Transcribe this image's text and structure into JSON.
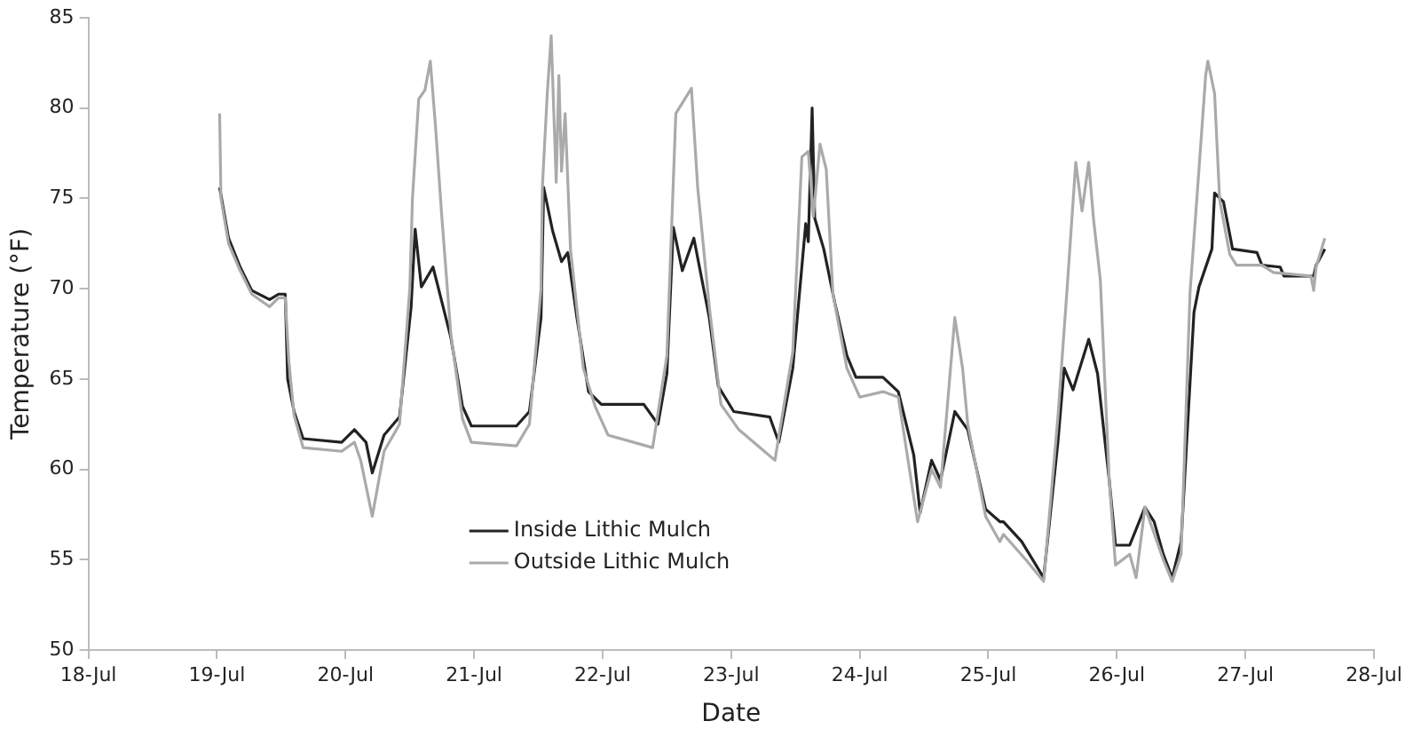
{
  "chart_data": {
    "type": "line",
    "xlabel": "Date",
    "ylabel": "Temperature (°F)",
    "xlim": [
      "--07-18",
      "--07-28"
    ],
    "ylim": [
      50,
      85
    ],
    "xticks": [
      {
        "value": "--07-18",
        "label": "18-Jul"
      },
      {
        "value": "--07-19",
        "label": "19-Jul"
      },
      {
        "value": "--07-20",
        "label": "20-Jul"
      },
      {
        "value": "--07-21",
        "label": "21-Jul"
      },
      {
        "value": "--07-22",
        "label": "22-Jul"
      },
      {
        "value": "--07-23",
        "label": "23-Jul"
      },
      {
        "value": "--07-24",
        "label": "24-Jul"
      },
      {
        "value": "--07-25",
        "label": "25-Jul"
      },
      {
        "value": "--07-26",
        "label": "26-Jul"
      },
      {
        "value": "--07-27",
        "label": "27-Jul"
      },
      {
        "value": "--07-28",
        "label": "28-Jul"
      }
    ],
    "yticks": [
      50,
      55,
      60,
      65,
      70,
      75,
      80,
      85
    ],
    "grid": false,
    "legend": "bottom",
    "marker": "none",
    "line_style": "solid",
    "series": [
      {
        "name": "Outside Lithic Mulch",
        "color": "#aaaaaa",
        "x": [
          "--07-19T00:30",
          "--07-19T00:45",
          "--07-19T02:10",
          "--07-19T04:20",
          "--07-19T06:30",
          "--07-19T09:50",
          "--07-19T11:30",
          "--07-19T12:45",
          "--07-19T13:25",
          "--07-19T14:24",
          "--07-19T16:05",
          "--07-19T23:17",
          "--07-20T01:40",
          "--07-20T02:50",
          "--07-20T05:00",
          "--07-20T07:12",
          "--07-20T10:05",
          "--07-20T12:00",
          "--07-20T12:30",
          "--07-20T13:40",
          "--07-20T14:50",
          "--07-20T15:50",
          "--07-20T16:48",
          "--07-20T18:00",
          "--07-20T19:40",
          "--07-20T21:50",
          "--07-20T23:30",
          "--07-21T07:55",
          "--07-21T10:20",
          "--07-21T12:30",
          "--07-21T12:45",
          "--07-21T13:40",
          "--07-21T14:24",
          "--07-21T15:20",
          "--07-21T15:50",
          "--07-21T16:20",
          "--07-21T17:00",
          "--07-21T18:00",
          "--07-21T20:24",
          "--07-21T22:35",
          "--07-22T01:00",
          "--07-22T09:20",
          "--07-22T12:00",
          "--07-22T13:40",
          "--07-22T15:20",
          "--07-22T16:35",
          "--07-22T17:45",
          "--07-22T19:55",
          "--07-22T22:05",
          "--07-23T01:25",
          "--07-23T08:10",
          "--07-23T11:30",
          "--07-23T13:12",
          "--07-23T14:24",
          "--07-23T15:20",
          "--07-23T16:35",
          "--07-23T17:45",
          "--07-23T19:00",
          "--07-23T21:36",
          "--07-24T00:00",
          "--07-24T04:20",
          "--07-24T07:12",
          "--07-24T10:48",
          "--07-24T13:25",
          "--07-24T15:05",
          "--07-24T17:45",
          "--07-24T19:12",
          "--07-24T20:10",
          "--07-24T23:30",
          "--07-25T02:10",
          "--07-25T02:50",
          "--07-25T07:00",
          "--07-25T10:20",
          "--07-25T13:00",
          "--07-25T14:40",
          "--07-25T16:20",
          "--07-25T17:30",
          "--07-25T18:45",
          "--07-25T19:40",
          "--07-25T20:55",
          "--07-25T22:35",
          "--07-25T23:45",
          "--07-26T02:24",
          "--07-26T03:36",
          "--07-26T05:15",
          "--07-26T08:40",
          "--07-26T10:20",
          "--07-26T12:00",
          "--07-26T13:40",
          "--07-26T15:20",
          "--07-26T16:35",
          "--07-26T17:00",
          "--07-26T18:15",
          "--07-26T19:12",
          "--07-26T21:05",
          "--07-26T22:20",
          "--07-27T03:05",
          "--07-27T05:15",
          "--07-27T12:15",
          "--07-27T12:45",
          "--07-27T13:12",
          "--07-27T14:50"
        ],
        "values": [
          79.7,
          75,
          72.5,
          71,
          69.7,
          69,
          69.5,
          69.5,
          66,
          63,
          61.2,
          61,
          61.5,
          60.5,
          57.4,
          61,
          62.5,
          70,
          75,
          80.5,
          81,
          82.6,
          79,
          73.9,
          67.5,
          62.8,
          61.5,
          61.3,
          62.5,
          70,
          75.6,
          80.8,
          84,
          75.9,
          81.8,
          76.5,
          79.7,
          72.2,
          65.6,
          63.5,
          61.9,
          61.2,
          66.3,
          79.7,
          80.5,
          81.1,
          75.6,
          69,
          63.6,
          62.2,
          60.5,
          66.5,
          77.3,
          77.6,
          74,
          78,
          76.6,
          69.7,
          65.6,
          64,
          64.3,
          64,
          57.1,
          60,
          59,
          68.4,
          65.6,
          62.5,
          57.4,
          56,
          56.4,
          55,
          53.8,
          62.9,
          69.8,
          77,
          74.3,
          77,
          73.8,
          70.5,
          59.4,
          54.7,
          55.3,
          54,
          57.9,
          55,
          53.8,
          55.3,
          69.8,
          76.6,
          81.8,
          82.6,
          80.8,
          74.9,
          71.9,
          71.3,
          71.3,
          70.9,
          70.7,
          69.9,
          71.2,
          72.8
        ]
      },
      {
        "name": "Inside Lithic Mulch",
        "color": "#222222",
        "x": [
          "--07-19T00:30",
          "--07-19T02:10",
          "--07-19T04:20",
          "--07-19T06:30",
          "--07-19T09:50",
          "--07-19T11:30",
          "--07-19T12:45",
          "--07-19T13:12",
          "--07-19T14:24",
          "--07-19T16:05",
          "--07-19T23:17",
          "--07-20T01:40",
          "--07-20T03:50",
          "--07-20T05:00",
          "--07-20T07:12",
          "--07-20T10:05",
          "--07-20T12:15",
          "--07-20T13:00",
          "--07-20T14:10",
          "--07-20T16:20",
          "--07-20T17:17",
          "--07-20T19:40",
          "--07-20T21:50",
          "--07-20T23:30",
          "--07-21T07:55",
          "--07-21T10:20",
          "--07-21T12:30",
          "--07-21T13:00",
          "--07-21T14:40",
          "--07-21T16:20",
          "--07-21T17:30",
          "--07-21T19:12",
          "--07-21T21:22",
          "--07-21T23:45",
          "--07-22T07:41",
          "--07-22T10:20",
          "--07-22T12:00",
          "--07-22T13:12",
          "--07-22T14:53",
          "--07-22T17:02",
          "--07-22T19:55",
          "--07-22T21:36",
          "--07-23T00:29",
          "--07-23T07:12",
          "--07-23T08:53",
          "--07-23T11:30",
          "--07-23T13:55",
          "--07-23T14:24",
          "--07-23T15:07",
          "--07-23T15:36",
          "--07-23T17:17",
          "--07-23T19:26",
          "--07-23T21:36",
          "--07-23T23:17",
          "--07-24T04:20",
          "--07-24T07:12",
          "--07-24T10:05",
          "--07-24T11:17",
          "--07-24T13:25",
          "--07-24T15:05",
          "--07-24T17:45",
          "--07-24T20:10",
          "--07-24T23:30",
          "--07-25T02:10",
          "--07-25T02:50",
          "--07-25T06:14",
          "--07-25T10:20",
          "--07-25T13:00",
          "--07-25T14:10",
          "--07-25T15:50",
          "--07-25T18:45",
          "--07-25T20:24",
          "--07-25T22:35",
          "--07-25T23:45",
          "--07-26T02:24",
          "--07-26T05:15",
          "--07-26T06:58",
          "--07-26T08:40",
          "--07-26T10:20",
          "--07-26T12:00",
          "--07-26T14:24",
          "--07-26T15:20",
          "--07-26T17:45",
          "--07-26T18:15",
          "--07-26T19:55",
          "--07-26T21:36",
          "--07-27T02:10",
          "--07-27T03:05",
          "--07-27T06:29",
          "--07-27T07:12",
          "--07-27T12:45",
          "--07-27T13:12",
          "--07-27T14:50"
        ],
        "values": [
          75.6,
          72.8,
          71.2,
          69.9,
          69.4,
          69.7,
          69.7,
          65,
          63.2,
          61.7,
          61.5,
          62.2,
          61.5,
          59.8,
          61.9,
          62.9,
          69,
          73.3,
          70.1,
          71.2,
          70.1,
          67.3,
          63.5,
          62.4,
          62.4,
          63.2,
          68.4,
          75.6,
          73.2,
          71.5,
          72,
          68.4,
          64.3,
          63.6,
          63.6,
          62.5,
          65.3,
          73.4,
          71,
          72.8,
          68.4,
          64.6,
          63.2,
          62.9,
          61.5,
          65.6,
          73.6,
          72.6,
          80,
          73.9,
          72.2,
          69.1,
          66.3,
          65.1,
          65.1,
          64.3,
          60.8,
          57.6,
          60.5,
          59.4,
          63.2,
          62.2,
          57.8,
          57.1,
          57.1,
          56,
          54,
          61.5,
          65.6,
          64.4,
          67.2,
          65.3,
          59.4,
          55.8,
          55.8,
          57.9,
          57.1,
          55.3,
          54,
          56,
          68.7,
          70.1,
          72.2,
          75.3,
          74.8,
          72.2,
          72,
          71.3,
          71.2,
          70.7,
          70.7,
          71.3,
          72.2
        ]
      }
    ]
  }
}
